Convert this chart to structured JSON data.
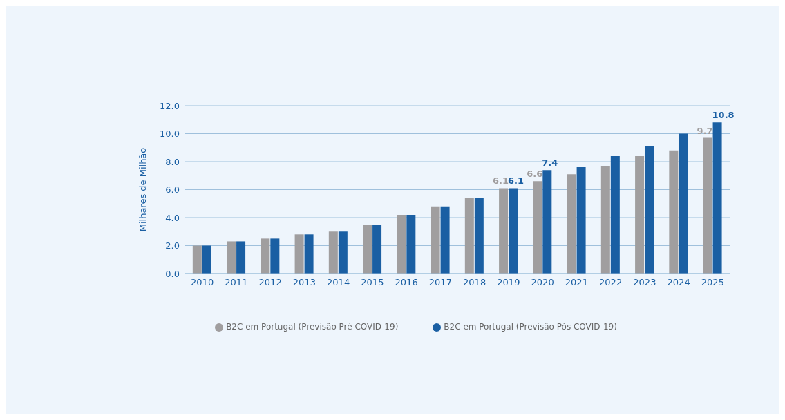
{
  "chart_data": {
    "type": "bar",
    "ylabel": "Milhares de Milhão",
    "categories": [
      "2010",
      "2011",
      "2012",
      "2013",
      "2014",
      "2015",
      "2016",
      "2017",
      "2018",
      "2019",
      "2020",
      "2021",
      "2022",
      "2023",
      "2024",
      "2025"
    ],
    "series": [
      {
        "name": "B2C em Portugal (Previsão Pré COVID-19)",
        "color": "#a09e9f",
        "values": [
          2.0,
          2.3,
          2.5,
          2.8,
          3.0,
          3.5,
          4.2,
          4.8,
          5.4,
          6.1,
          6.6,
          7.1,
          7.7,
          8.4,
          8.8,
          9.7
        ],
        "value_labels": [
          null,
          null,
          null,
          null,
          null,
          null,
          null,
          null,
          null,
          "6.1",
          "6.6",
          null,
          null,
          null,
          null,
          "9.7"
        ]
      },
      {
        "name": "B2C em Portugal (Previsão Pós COVID-19)",
        "color": "#1a5fa3",
        "values": [
          2.0,
          2.3,
          2.5,
          2.8,
          3.0,
          3.5,
          4.2,
          4.8,
          5.4,
          6.1,
          7.4,
          7.6,
          8.4,
          9.1,
          10.0,
          10.8
        ],
        "value_labels": [
          null,
          null,
          null,
          null,
          null,
          null,
          null,
          null,
          null,
          "6.1",
          "7.4",
          null,
          null,
          null,
          null,
          "10.8"
        ]
      }
    ],
    "ylim": [
      0,
      12
    ],
    "yticks": [
      {
        "value": 0,
        "label": "0.0"
      },
      {
        "value": 2,
        "label": "2.0"
      },
      {
        "value": 4,
        "label": "4.0"
      },
      {
        "value": 6,
        "label": "6.0"
      },
      {
        "value": 8,
        "label": "8.0"
      },
      {
        "value": 10,
        "label": "10.0"
      },
      {
        "value": 12,
        "label": "12.0"
      }
    ],
    "grid": "y",
    "legend": "bottom"
  }
}
